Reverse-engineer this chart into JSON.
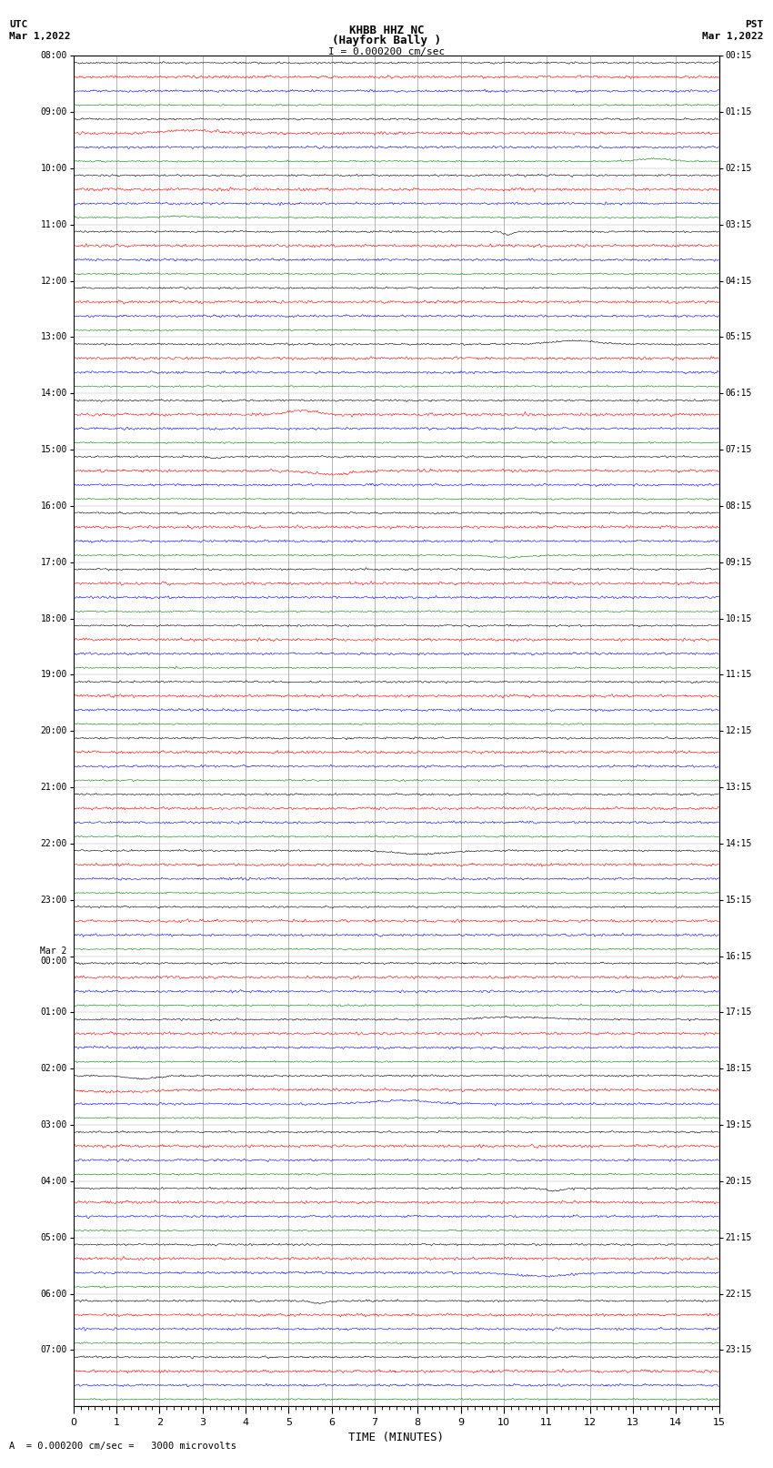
{
  "title_line1": "KHBB HHZ NC",
  "title_line2": "(Hayfork Bally )",
  "scale_text": "I = 0.000200 cm/sec",
  "utc_label": "UTC",
  "utc_date": "Mar 1,2022",
  "pst_label": "PST",
  "pst_date": "Mar 1,2022",
  "xlabel": "TIME (MINUTES)",
  "bottom_note": "A  = 0.000200 cm/sec =   3000 microvolts",
  "left_times": [
    "08:00",
    "09:00",
    "10:00",
    "11:00",
    "12:00",
    "13:00",
    "14:00",
    "15:00",
    "16:00",
    "17:00",
    "18:00",
    "19:00",
    "20:00",
    "21:00",
    "22:00",
    "23:00",
    "Mar 2\n00:00",
    "01:00",
    "02:00",
    "03:00",
    "04:00",
    "05:00",
    "06:00",
    "07:00"
  ],
  "right_times": [
    "00:15",
    "01:15",
    "02:15",
    "03:15",
    "04:15",
    "05:15",
    "06:15",
    "07:15",
    "08:15",
    "09:15",
    "10:15",
    "11:15",
    "12:15",
    "13:15",
    "14:15",
    "15:15",
    "16:15",
    "17:15",
    "18:15",
    "19:15",
    "20:15",
    "21:15",
    "22:15",
    "23:15"
  ],
  "num_hour_blocks": 24,
  "traces_per_block": 4,
  "colors": [
    "black",
    "red",
    "blue",
    "green"
  ],
  "x_min": 0,
  "x_max": 15,
  "x_ticks": [
    0,
    1,
    2,
    3,
    4,
    5,
    6,
    7,
    8,
    9,
    10,
    11,
    12,
    13,
    14,
    15
  ],
  "noise_amp": [
    0.12,
    0.18,
    0.15,
    0.1
  ],
  "background_color": "white",
  "figure_width": 8.5,
  "figure_height": 16.13,
  "dpi": 100
}
